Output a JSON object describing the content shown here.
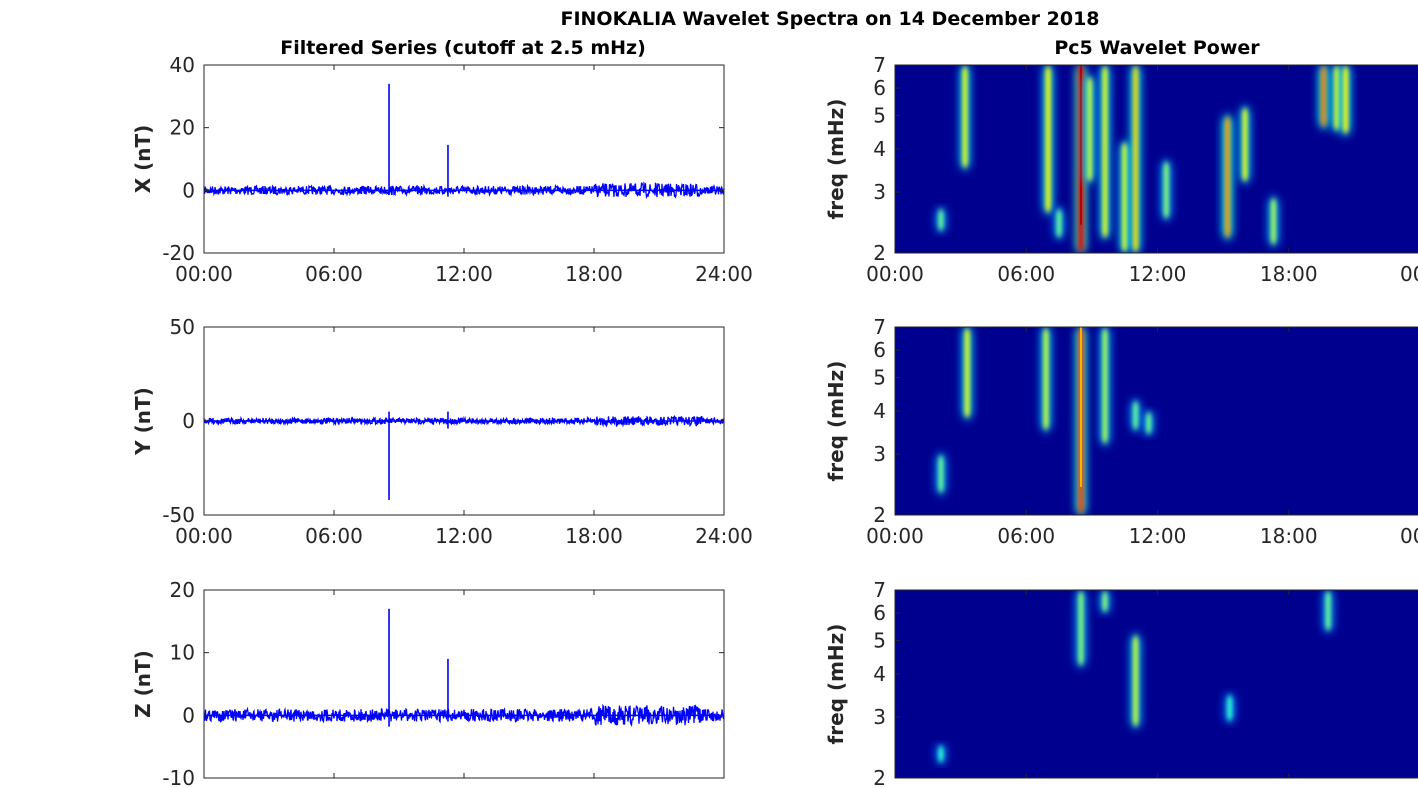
{
  "title": "FINOKALIA Wavelet Spectra on 14 December 2018",
  "left_title": "Filtered Series (cutoff at 2.5 mHz)",
  "right_title": "Pc5 Wavelet Power",
  "colors": {
    "line": "#0000ff",
    "background_power": "#00008f",
    "axis": "#262626"
  },
  "chart_data": [
    {
      "type": "line",
      "component": "X",
      "ylabel": "X (nT)",
      "ylim": [
        -20,
        40
      ],
      "yticks": [
        "-20",
        "0",
        "20",
        "40"
      ],
      "xlim_hours": [
        0,
        24
      ],
      "xticks": [
        "00:00",
        "06:00",
        "12:00",
        "18:00",
        "24:00"
      ],
      "show_xticklabels": true,
      "noise_nT": 0.35,
      "spikes": [
        {
          "t": 8.54,
          "max": 34,
          "min": -1.5
        },
        {
          "t": 11.26,
          "max": 14.5,
          "min": -2
        }
      ]
    },
    {
      "type": "line",
      "component": "Y",
      "ylabel": "Y (nT)",
      "ylim": [
        -50,
        50
      ],
      "yticks": [
        "-50",
        "0",
        "50"
      ],
      "xlim_hours": [
        0,
        24
      ],
      "xticks": [
        "00:00",
        "06:00",
        "12:00",
        "18:00",
        "24:00"
      ],
      "show_xticklabels": true,
      "noise_nT": 0.4,
      "spikes": [
        {
          "t": 8.54,
          "max": 5,
          "min": -42
        },
        {
          "t": 11.26,
          "max": 5,
          "min": -4
        }
      ]
    },
    {
      "type": "line",
      "component": "Z",
      "ylabel": "Z (nT)",
      "ylim": [
        -10,
        20
      ],
      "yticks": [
        "-10",
        "0",
        "10",
        "20"
      ],
      "xlim_hours": [
        0,
        24
      ],
      "xticks": [
        "",
        "",
        "",
        "",
        ""
      ],
      "show_xticklabels": false,
      "noise_nT": 0.25,
      "spikes": [
        {
          "t": 8.54,
          "max": 17,
          "min": -1.8
        },
        {
          "t": 11.26,
          "max": 9,
          "min": -1
        },
        {
          "t": 12.5,
          "max": 0.5,
          "min": -0.8
        }
      ]
    },
    {
      "type": "heatmap",
      "component": "X",
      "ylabel": "freq (mHz)",
      "yscale": "log",
      "ylim": [
        2,
        7
      ],
      "yticks": [
        "2",
        "3",
        "4",
        "5",
        "6",
        "7"
      ],
      "xticks": [
        "00:00",
        "06:00",
        "12:00",
        "18:00",
        "00"
      ],
      "show_xticklabels": true,
      "power_features": [
        {
          "t": 2.1,
          "fmin": 2.3,
          "fmax": 2.7,
          "p": 0.3
        },
        {
          "t": 3.2,
          "fmin": 3.5,
          "fmax": 7,
          "p": 0.5
        },
        {
          "t": 7.0,
          "fmin": 2.6,
          "fmax": 7,
          "p": 0.55
        },
        {
          "t": 7.5,
          "fmin": 2.2,
          "fmax": 2.7,
          "p": 0.3
        },
        {
          "t": 8.5,
          "fmin": 2.0,
          "fmax": 7,
          "p": 1.0
        },
        {
          "t": 8.9,
          "fmin": 3.2,
          "fmax": 6.5,
          "p": 0.45
        },
        {
          "t": 9.6,
          "fmin": 2.2,
          "fmax": 7,
          "p": 0.5
        },
        {
          "t": 10.5,
          "fmin": 2.0,
          "fmax": 4.2,
          "p": 0.5
        },
        {
          "t": 11.0,
          "fmin": 2.0,
          "fmax": 7,
          "p": 0.6
        },
        {
          "t": 12.4,
          "fmin": 2.5,
          "fmax": 3.7,
          "p": 0.35
        },
        {
          "t": 15.2,
          "fmin": 2.2,
          "fmax": 5,
          "p": 0.7
        },
        {
          "t": 16.0,
          "fmin": 3.2,
          "fmax": 5.3,
          "p": 0.5
        },
        {
          "t": 17.3,
          "fmin": 2.1,
          "fmax": 2.9,
          "p": 0.4
        },
        {
          "t": 19.6,
          "fmin": 4.6,
          "fmax": 7,
          "p": 0.75
        },
        {
          "t": 20.2,
          "fmin": 4.5,
          "fmax": 7,
          "p": 0.55
        },
        {
          "t": 20.6,
          "fmin": 4.4,
          "fmax": 7,
          "p": 0.55
        }
      ]
    },
    {
      "type": "heatmap",
      "component": "Y",
      "ylabel": "freq (mHz)",
      "yscale": "log",
      "ylim": [
        2,
        7
      ],
      "yticks": [
        "2",
        "3",
        "4",
        "5",
        "6",
        "7"
      ],
      "xticks": [
        "00:00",
        "06:00",
        "12:00",
        "18:00",
        "00"
      ],
      "show_xticklabels": true,
      "power_features": [
        {
          "t": 2.1,
          "fmin": 2.3,
          "fmax": 3,
          "p": 0.3
        },
        {
          "t": 3.3,
          "fmin": 3.8,
          "fmax": 7,
          "p": 0.5
        },
        {
          "t": 6.9,
          "fmin": 3.5,
          "fmax": 7,
          "p": 0.45
        },
        {
          "t": 8.5,
          "fmin": 2.0,
          "fmax": 7,
          "p": 0.85
        },
        {
          "t": 9.6,
          "fmin": 3.2,
          "fmax": 7,
          "p": 0.4
        },
        {
          "t": 11.0,
          "fmin": 3.5,
          "fmax": 4.3,
          "p": 0.3
        },
        {
          "t": 11.6,
          "fmin": 3.4,
          "fmax": 4.0,
          "p": 0.3
        }
      ]
    },
    {
      "type": "heatmap",
      "component": "Z",
      "ylabel": "freq (mHz)",
      "yscale": "log",
      "ylim": [
        2,
        7
      ],
      "yticks": [
        "2",
        "3",
        "4",
        "5",
        "6",
        "7"
      ],
      "xticks": [
        "",
        "",
        "",
        "",
        ""
      ],
      "show_xticklabels": false,
      "power_features": [
        {
          "t": 2.1,
          "fmin": 2.2,
          "fmax": 2.5,
          "p": 0.2
        },
        {
          "t": 8.5,
          "fmin": 4.2,
          "fmax": 7,
          "p": 0.35
        },
        {
          "t": 9.6,
          "fmin": 6,
          "fmax": 7,
          "p": 0.35
        },
        {
          "t": 11.0,
          "fmin": 2.8,
          "fmax": 5.2,
          "p": 0.45
        },
        {
          "t": 15.3,
          "fmin": 2.9,
          "fmax": 3.5,
          "p": 0.2
        },
        {
          "t": 19.8,
          "fmin": 5.3,
          "fmax": 7,
          "p": 0.3
        }
      ]
    }
  ]
}
